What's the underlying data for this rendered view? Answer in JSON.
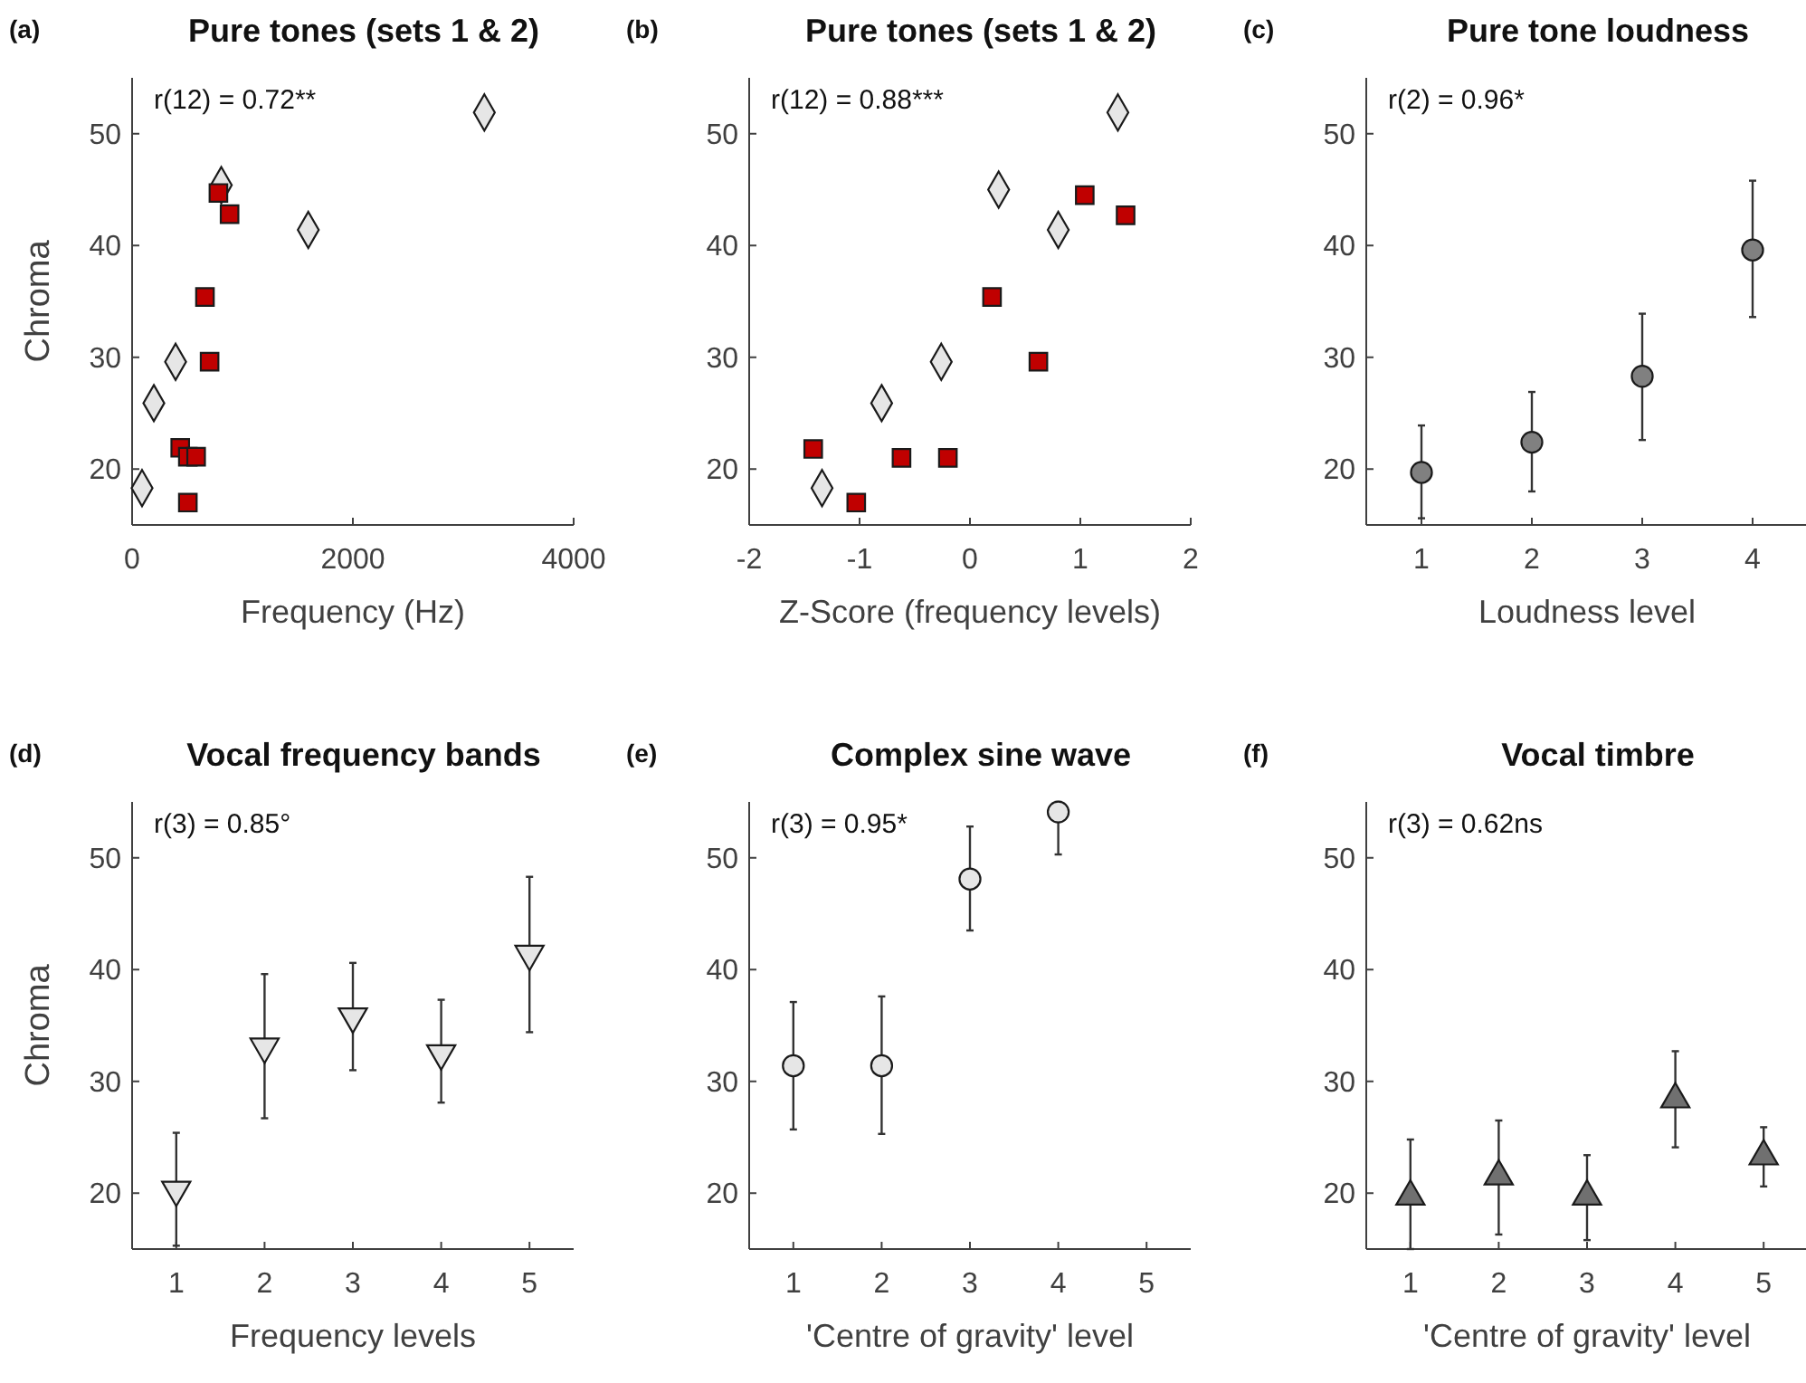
{
  "chart_data": [
    {
      "type": "scatter",
      "title": "Pure tones (sets 1 & 2)",
      "xlabel": "Frequency (Hz)",
      "ylabel": "Chroma",
      "annotations": [
        "(a)",
        "r(12) = 0.72**"
      ],
      "xlim": [
        0,
        4000
      ],
      "xticks": [
        0,
        2000,
        4000
      ],
      "ylim": [
        15,
        55
      ],
      "yticks": [
        20,
        30,
        40,
        50
      ],
      "series": [
        {
          "color": "#e6e6e6",
          "marker": "diamond",
          "x": [
            90,
            197,
            394,
            808,
            1596,
            3191
          ],
          "values": [
            18.3,
            25.9,
            29.6,
            45.4,
            41.4,
            51.9
          ]
        },
        {
          "color": "#c00000",
          "marker": "square",
          "x": [
            782,
            883,
            660,
            702,
            436,
            505,
            580,
            505
          ],
          "values": [
            44.7,
            42.8,
            35.4,
            29.6,
            21.9,
            21.1,
            21.1,
            17.0
          ]
        }
      ]
    },
    {
      "type": "scatter",
      "title": "Pure tones (sets 1 & 2)",
      "xlabel": "Z-Score (frequency levels)",
      "annotations": [
        "(b)",
        "r(12) = 0.88***"
      ],
      "xlim": [
        -2,
        2
      ],
      "xticks": [
        -2,
        -1,
        0,
        1,
        2
      ],
      "ylim": [
        15,
        55
      ],
      "yticks": [
        20,
        30,
        40,
        50
      ],
      "series": [
        {
          "color": "#e6e6e6",
          "marker": "diamond",
          "x": [
            -1.34,
            -0.8,
            -0.26,
            0.26,
            0.8,
            1.34
          ],
          "values": [
            18.3,
            25.9,
            29.6,
            45.0,
            41.4,
            51.9
          ]
        },
        {
          "color": "#c00000",
          "marker": "square",
          "x": [
            -1.42,
            -1.03,
            -0.62,
            -0.2,
            0.2,
            0.62,
            1.04,
            1.41
          ],
          "values": [
            21.8,
            17.0,
            21.0,
            21.0,
            35.4,
            29.6,
            44.5,
            42.7
          ]
        }
      ]
    },
    {
      "type": "scatter",
      "title": "Pure tone loudness",
      "xlabel": "Loudness level",
      "annotations": [
        "(c)",
        "r(2) = 0.96*"
      ],
      "xlim": [
        0.5,
        4.5
      ],
      "xticks": [
        1,
        2,
        3,
        4
      ],
      "ylim": [
        15,
        55
      ],
      "yticks": [
        20,
        30,
        40,
        50
      ],
      "series": [
        {
          "color": "#808080",
          "marker": "circle",
          "x": [
            1,
            2,
            3,
            4
          ],
          "values": [
            19.7,
            22.4,
            28.3,
            39.6
          ],
          "errors": [
            [
              15.6,
              23.9
            ],
            [
              18.0,
              26.9
            ],
            [
              22.6,
              33.9
            ],
            [
              33.6,
              45.8
            ]
          ]
        }
      ]
    },
    {
      "type": "scatter",
      "title": "Vocal frequency bands",
      "xlabel": "Frequency levels",
      "ylabel": "Chroma",
      "annotations": [
        "(d)",
        "r(3) = 0.85°"
      ],
      "xlim": [
        0.5,
        5.5
      ],
      "xticks": [
        1,
        2,
        3,
        4,
        5
      ],
      "ylim": [
        15,
        55
      ],
      "yticks": [
        20,
        30,
        40,
        50
      ],
      "series": [
        {
          "color": "#e6e6e6",
          "marker": "triangle_down",
          "x": [
            1,
            2,
            3,
            4,
            5
          ],
          "values": [
            20.3,
            33.1,
            35.8,
            32.5,
            41.4
          ],
          "errors": [
            [
              15.3,
              25.4
            ],
            [
              26.7,
              39.6
            ],
            [
              31.0,
              40.6
            ],
            [
              28.1,
              37.3
            ],
            [
              34.4,
              48.3
            ]
          ]
        }
      ]
    },
    {
      "type": "scatter",
      "title": "Complex sine wave",
      "xlabel": "'Centre of gravity' level",
      "annotations": [
        "(e)",
        "r(3) = 0.95*"
      ],
      "xlim": [
        0.5,
        5.5
      ],
      "xticks": [
        1,
        2,
        3,
        4,
        5
      ],
      "ylim": [
        15,
        55
      ],
      "yticks": [
        20,
        30,
        40,
        50
      ],
      "series": [
        {
          "color": "#e6e6e6",
          "marker": "circle",
          "x": [
            1,
            2,
            3,
            4
          ],
          "values": [
            31.4,
            31.4,
            48.1,
            54.1
          ],
          "errors": [
            [
              25.7,
              37.1
            ],
            [
              25.3,
              37.6
            ],
            [
              43.5,
              52.8
            ],
            [
              50.3,
              55.0
            ]
          ]
        }
      ]
    },
    {
      "type": "scatter",
      "title": "Vocal timbre",
      "xlabel": "'Centre of gravity' level",
      "annotations": [
        "(f)",
        "r(3) = 0.62ns"
      ],
      "xlim": [
        0.5,
        5.5
      ],
      "xticks": [
        1,
        2,
        3,
        4,
        5
      ],
      "ylim": [
        15,
        55
      ],
      "yticks": [
        20,
        30,
        40,
        50
      ],
      "series": [
        {
          "color": "#707070",
          "marker": "triangle",
          "x": [
            1,
            2,
            3,
            4,
            5
          ],
          "values": [
            19.7,
            21.5,
            19.7,
            28.4,
            23.3
          ],
          "errors": [
            [
              15.0,
              24.8
            ],
            [
              16.3,
              26.5
            ],
            [
              15.8,
              23.4
            ],
            [
              24.1,
              32.7
            ],
            [
              20.6,
              25.9
            ]
          ]
        }
      ]
    }
  ]
}
